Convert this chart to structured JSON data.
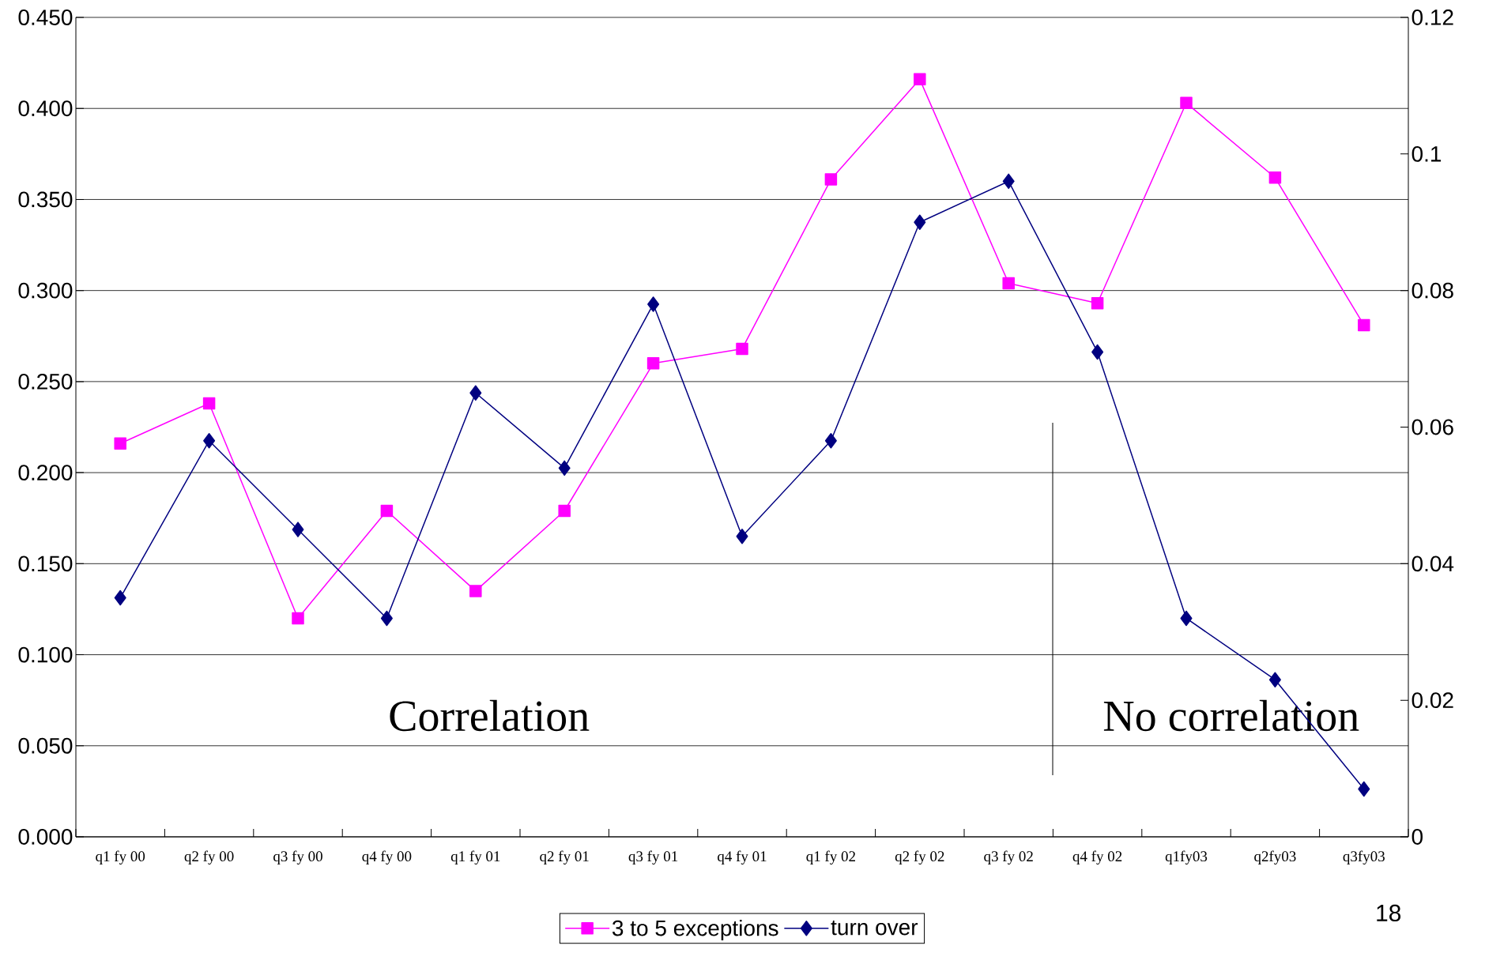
{
  "chart_data": {
    "type": "line",
    "categories": [
      "q1 fy 00",
      "q2 fy 00",
      "q3 fy 00",
      "q4 fy 00",
      "q1 fy 01",
      "q2 fy 01",
      "q3 fy 01",
      "q4 fy 01",
      "q1 fy 02",
      "q2 fy 02",
      "q3 fy 02",
      "q4 fy 02",
      "q1fy03",
      "q2fy03",
      "q3fy03"
    ],
    "series": [
      {
        "name": "3 to 5 exceptions",
        "color": "#ff00ff",
        "marker": "square",
        "values": [
          0.216,
          0.238,
          0.12,
          0.179,
          0.135,
          0.179,
          0.26,
          0.268,
          0.361,
          0.416,
          0.304,
          0.293,
          0.403,
          0.362,
          0.281
        ]
      },
      {
        "name": "turn over",
        "color": "#000080",
        "marker": "diamond",
        "axis": "y2",
        "values": [
          0.035,
          0.058,
          0.045,
          0.032,
          0.065,
          0.054,
          0.078,
          0.044,
          0.058,
          0.09,
          0.096,
          0.071,
          0.032,
          0.023,
          0.007
        ]
      }
    ],
    "ylim": [
      0,
      0.45
    ],
    "yticks": [
      {
        "value": 0,
        "label": "0.000"
      },
      {
        "value": 0.05,
        "label": "0.050"
      },
      {
        "value": 0.1,
        "label": "0.100"
      },
      {
        "value": 0.15,
        "label": "0.150"
      },
      {
        "value": 0.2,
        "label": "0.200"
      },
      {
        "value": 0.25,
        "label": "0.250"
      },
      {
        "value": 0.3,
        "label": "0.300"
      },
      {
        "value": 0.35,
        "label": "0.350"
      },
      {
        "value": 0.4,
        "label": "0.400"
      },
      {
        "value": 0.45,
        "label": "0.450"
      }
    ],
    "y2lim": [
      0,
      0.12
    ],
    "y2ticks": [
      {
        "value": 0,
        "label": "0"
      },
      {
        "value": 0.02,
        "label": "0.02"
      },
      {
        "value": 0.04,
        "label": "0.04"
      },
      {
        "value": 0.06,
        "label": "0.06"
      },
      {
        "value": 0.08,
        "label": "0.08"
      },
      {
        "value": 0.1,
        "label": "0.1"
      },
      {
        "value": 0.12,
        "label": "0.12"
      }
    ],
    "annotations": [
      "Correlation",
      "No correlation",
      "18"
    ],
    "grid": "y",
    "legend": "bottom",
    "line_style": "solid"
  }
}
